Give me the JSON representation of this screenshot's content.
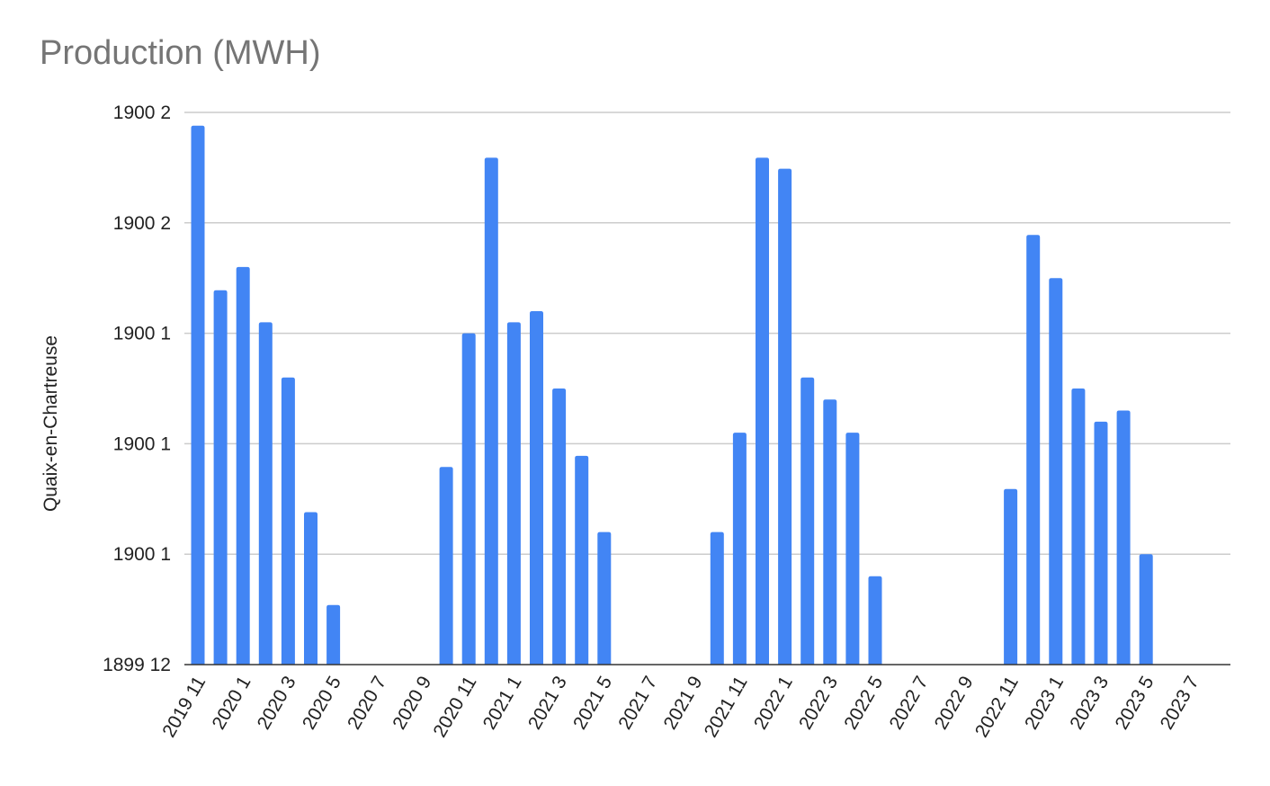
{
  "chart_data": {
    "type": "bar",
    "title": "Production (MWH)",
    "xlabel": "",
    "ylabel": "Quaix-en-Chartreuse",
    "y_tick_labels": [
      "1899 12",
      "1900 1",
      "1900 1",
      "1900 1",
      "1900 2",
      "1900 2"
    ],
    "ylim": [
      0,
      5
    ],
    "grid": true,
    "legend": "none",
    "bar_color": "#4285f4",
    "categories": [
      "2019 11",
      "2019 12",
      "2020 1",
      "2020 2",
      "2020 3",
      "2020 4",
      "2020 5",
      "2020 6",
      "2020 7",
      "2020 8",
      "2020 9",
      "2020 10",
      "2020 11",
      "2020 12",
      "2021 1",
      "2021 2",
      "2021 3",
      "2021 4",
      "2021 5",
      "2021 6",
      "2021 7",
      "2021 8",
      "2021 9",
      "2021 10",
      "2021 11",
      "2021 12",
      "2022 1",
      "2022 2",
      "2022 3",
      "2022 4",
      "2022 5",
      "2022 6",
      "2022 7",
      "2022 8",
      "2022 9",
      "2022 10",
      "2022 11",
      "2022 12",
      "2023 1",
      "2023 2",
      "2023 3",
      "2023 4",
      "2023 5",
      "2023 6",
      "2023 7",
      "2023 8"
    ],
    "x_tick_labels": [
      "2019 11",
      "2020 1",
      "2020 3",
      "2020 5",
      "2020 7",
      "2020 9",
      "2020 11",
      "2021 1",
      "2021 3",
      "2021 5",
      "2021 7",
      "2021 9",
      "2021 11",
      "2022 1",
      "2022 3",
      "2022 5",
      "2022 7",
      "2022 9",
      "2022 11",
      "2023 1",
      "2023 3",
      "2023 5",
      "2023 7"
    ],
    "values": [
      4.88,
      3.39,
      3.6,
      3.1,
      2.6,
      1.38,
      0.54,
      0,
      0,
      0,
      0,
      1.79,
      3.0,
      4.59,
      3.1,
      3.2,
      2.5,
      1.89,
      1.2,
      0,
      0,
      0,
      0,
      1.2,
      2.1,
      4.59,
      4.49,
      2.6,
      2.4,
      2.1,
      0.8,
      0,
      0,
      0,
      0,
      0,
      1.59,
      3.89,
      3.5,
      2.5,
      2.2,
      2.3,
      1.0,
      0,
      0,
      0
    ]
  }
}
